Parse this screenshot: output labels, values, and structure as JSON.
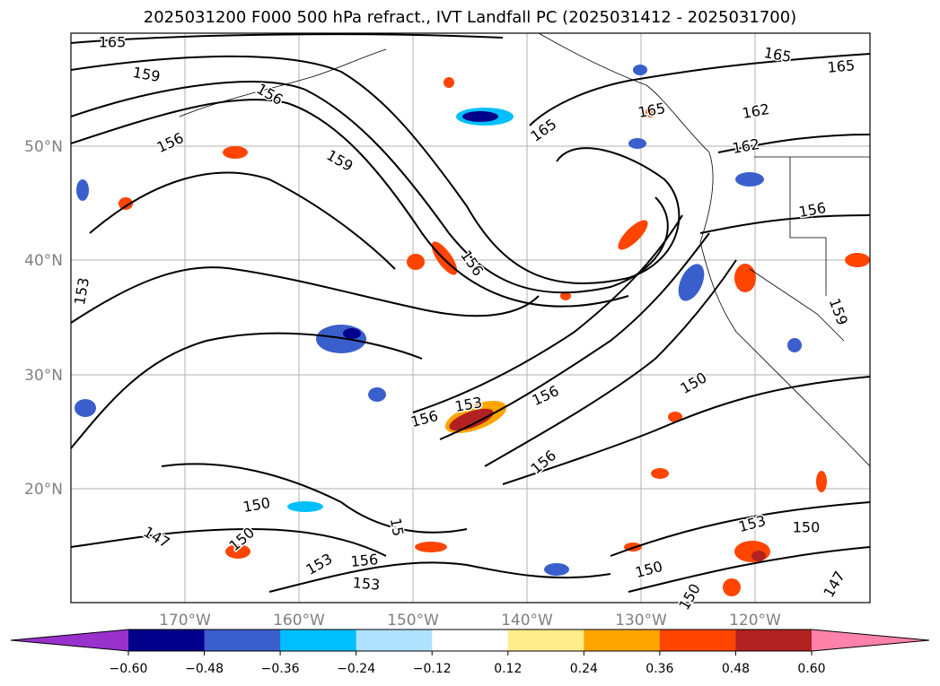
{
  "title": "2025031200 F000 500 hPa refract., IVT Landfall PC (2025031412 - 2025031700)",
  "map": {
    "lon_labels": [
      "170°W",
      "160°W",
      "150°W",
      "140°W",
      "130°W",
      "120°W"
    ],
    "lat_labels": [
      "50°N",
      "40°N",
      "30°N",
      "20°N"
    ],
    "gridlines": true
  },
  "colorbar": {
    "ticks": [
      "−0.60",
      "−0.48",
      "−0.36",
      "−0.24",
      "−0.12",
      "0.12",
      "0.24",
      "0.36",
      "0.48",
      "0.60"
    ],
    "colors": [
      "#9932cc",
      "#00008b",
      "#3a5fcd",
      "#00bfff",
      "#b0e2ff",
      "#ffffff",
      "#ffec8b",
      "#ffa500",
      "#ff4500",
      "#b22222",
      "#ff82ab"
    ],
    "extend": "both"
  },
  "contour_labels": [
    {
      "text": "165"
    },
    {
      "text": "159"
    },
    {
      "text": "156"
    },
    {
      "text": "156"
    },
    {
      "text": "159"
    },
    {
      "text": "153"
    },
    {
      "text": "156"
    },
    {
      "text": "165"
    },
    {
      "text": "165"
    },
    {
      "text": "165"
    },
    {
      "text": "162"
    },
    {
      "text": "162"
    },
    {
      "text": "156"
    },
    {
      "text": "159"
    },
    {
      "text": "150"
    },
    {
      "text": "156"
    },
    {
      "text": "153"
    },
    {
      "text": "156"
    },
    {
      "text": "156"
    },
    {
      "text": "150"
    },
    {
      "text": "147"
    },
    {
      "text": "150"
    },
    {
      "text": "153"
    },
    {
      "text": "156"
    },
    {
      "text": "153"
    },
    {
      "text": "150"
    },
    {
      "text": "153"
    },
    {
      "text": "150"
    },
    {
      "text": "150"
    },
    {
      "text": "147"
    },
    {
      "text": "15"
    },
    {
      "text": "165"
    }
  ],
  "colors": {
    "contour": "#000000",
    "grid": "#b0b0b0",
    "coast": "#000000",
    "axis_label": "#808080"
  }
}
